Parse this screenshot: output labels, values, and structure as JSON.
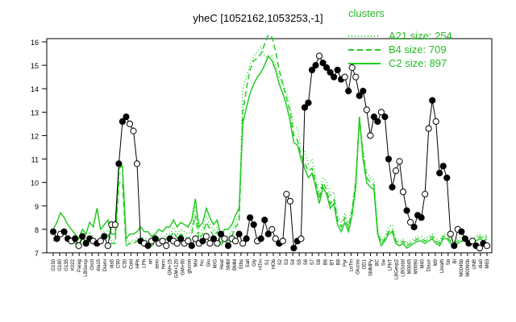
{
  "chart_data": {
    "type": "line",
    "title": "yheC [1052162,1053253,-1]",
    "xlabel": "",
    "ylabel": "",
    "ylim": [
      7,
      16
    ],
    "yticks": [
      7,
      8,
      9,
      10,
      11,
      12,
      13,
      14,
      15,
      16
    ],
    "grid": false,
    "legend": {
      "placement": "top-right",
      "title": "clusters",
      "entries": [
        {
          "label": "A21 size: 254",
          "style": "dotted"
        },
        {
          "label": "B4 size: 709",
          "style": "dashed"
        },
        {
          "label": "C2 size: 897",
          "style": "solid"
        }
      ]
    },
    "colors": {
      "lines": "#22cc22",
      "points_fill": "#000000",
      "points_open": "#ffffff",
      "legend": "#22bb22"
    },
    "x_tick_labels": [
      "G150",
      "G180",
      "G135",
      "K022",
      "Parag",
      "LBGexp",
      "Oxctl",
      "dia15",
      "Diami",
      "dia5",
      "C90",
      "C30",
      "Cold",
      "HPh",
      "LPh",
      "nit",
      "aero",
      "ferm",
      "GM+15",
      "GM+120",
      "GM+90",
      "glucon",
      "Mal",
      "Frc",
      "Glu",
      "M/G",
      "Heat",
      "SMM",
      "BMM",
      "Eths",
      "Salt",
      "Gly",
      "HTm",
      "S1",
      "HOb",
      "S2",
      "S3",
      "S4",
      "S5",
      "S6",
      "S7",
      "S8",
      "B6",
      "BT",
      "B8",
      "Pyr",
      "LoTm",
      "Glucos",
      "OD1",
      "SMMPy",
      "BC",
      "Sw",
      "LPhT",
      "LBGexp2",
      "LBGstat",
      "M0045",
      "M0090",
      "M40",
      "Diaux",
      "M9",
      "Lbrath",
      "Sb",
      "BI",
      "M0045b",
      "M0090b",
      "UNB",
      "dia0",
      "M63"
    ],
    "series": [
      {
        "name": "A21 size: 254",
        "y": [
          7.6,
          7.7,
          8.0,
          7.9,
          7.8,
          7.6,
          7.5,
          7.3,
          7.7,
          7.5,
          7.9,
          7.7,
          7.4,
          7.7,
          7.9,
          8.0,
          7.5,
          7.5,
          10.4,
          10.3,
          7.4,
          7.5,
          7.5,
          7.6,
          7.7,
          7.6,
          7.6,
          7.4,
          7.5,
          7.7,
          7.6,
          7.8,
          7.8,
          8.1,
          7.8,
          8.0,
          7.9,
          7.8,
          8.0,
          9.0,
          7.8,
          8.0,
          8.6,
          8.2,
          7.9,
          8.1,
          7.4,
          7.7,
          7.7,
          7.9,
          8.3,
          8.6,
          14.0,
          14.5,
          15.0,
          15.4,
          15.6,
          15.8,
          15.4,
          15.3,
          15.4,
          15.0,
          14.5,
          14.2,
          13.8,
          13.3,
          12.4,
          12.3,
          11.5,
          11.3,
          10.8,
          11.0,
          10.2,
          9.5,
          10.2,
          10.0,
          9.4,
          9.6,
          8.6,
          8.3,
          8.7,
          8.2,
          9.0,
          10.2,
          12.5,
          11.4,
          10.4,
          10.2,
          10.1,
          8.0,
          7.5,
          7.7,
          8.1,
          8.2,
          7.6,
          7.5,
          7.6,
          7.4,
          7.5,
          7.6,
          7.7,
          7.7,
          7.6,
          7.7,
          7.8,
          7.6,
          7.5,
          7.8,
          7.8,
          7.6,
          7.5,
          7.6,
          7.7,
          7.7,
          7.7,
          7.6,
          7.7,
          7.8,
          7.7,
          7.8
        ]
      },
      {
        "name": "B4 size: 709",
        "y": [
          7.5,
          7.6,
          7.8,
          7.8,
          7.7,
          7.6,
          7.4,
          7.3,
          7.6,
          7.4,
          7.7,
          7.6,
          7.4,
          7.5,
          7.7,
          7.8,
          7.4,
          7.4,
          10.0,
          10.0,
          7.3,
          7.4,
          7.4,
          7.5,
          7.5,
          7.5,
          7.5,
          7.3,
          7.4,
          7.6,
          7.5,
          7.6,
          7.6,
          7.9,
          7.6,
          7.8,
          7.7,
          7.6,
          7.8,
          8.6,
          7.6,
          7.8,
          8.3,
          8.0,
          7.7,
          7.9,
          7.3,
          7.6,
          7.5,
          7.7,
          8.1,
          8.3,
          13.0,
          14.0,
          14.8,
          15.2,
          15.3,
          15.5,
          15.9,
          16.3,
          16.2,
          15.6,
          14.8,
          14.2,
          13.6,
          13.0,
          12.0,
          11.8,
          11.2,
          10.8,
          10.5,
          10.6,
          10.0,
          9.3,
          10.0,
          9.7,
          9.1,
          9.3,
          8.4,
          8.1,
          8.5,
          8.1,
          8.8,
          10.0,
          12.8,
          11.2,
          10.2,
          10.0,
          9.9,
          7.9,
          7.4,
          7.6,
          7.9,
          8.0,
          7.5,
          7.4,
          7.5,
          7.3,
          7.4,
          7.5,
          7.6,
          7.6,
          7.5,
          7.6,
          7.7,
          7.5,
          7.4,
          7.7,
          7.7,
          7.5,
          7.4,
          7.5,
          7.6,
          7.6,
          7.6,
          7.5,
          7.6,
          7.7,
          7.6,
          7.7
        ]
      },
      {
        "name": "C2 size: 897",
        "y": [
          8.0,
          8.3,
          8.7,
          8.5,
          8.2,
          8.0,
          7.8,
          7.6,
          8.0,
          7.8,
          8.3,
          8.1,
          8.9,
          8.0,
          8.2,
          8.4,
          7.8,
          7.8,
          10.6,
          10.7,
          7.6,
          7.8,
          7.8,
          7.9,
          8.1,
          7.9,
          7.9,
          7.7,
          7.8,
          8.0,
          7.9,
          8.1,
          8.1,
          8.4,
          8.1,
          8.3,
          8.2,
          8.1,
          8.4,
          9.3,
          8.1,
          8.3,
          8.9,
          8.5,
          8.2,
          8.4,
          7.7,
          8.0,
          8.0,
          8.2,
          8.6,
          8.9,
          12.5,
          13.2,
          13.8,
          14.2,
          14.5,
          14.7,
          15.0,
          15.4,
          15.2,
          14.8,
          14.2,
          13.8,
          13.3,
          12.6,
          11.7,
          11.6,
          11.0,
          10.6,
          10.2,
          10.4,
          9.8,
          9.1,
          9.8,
          9.5,
          8.9,
          9.1,
          8.2,
          7.9,
          8.3,
          7.9,
          8.6,
          9.8,
          12.8,
          11.0,
          10.0,
          9.8,
          9.7,
          7.8,
          7.3,
          7.5,
          7.8,
          7.9,
          7.4,
          7.3,
          7.4,
          7.2,
          7.3,
          7.4,
          7.5,
          7.5,
          7.4,
          7.5,
          7.6,
          7.4,
          7.3,
          7.6,
          7.6,
          7.4,
          7.3,
          7.4,
          7.5,
          7.5,
          7.5,
          7.4,
          7.5,
          7.6,
          7.5,
          7.6
        ]
      }
    ],
    "points": [
      {
        "x": 0,
        "y": 7.9,
        "filled": true
      },
      {
        "x": 1,
        "y": 7.6,
        "filled": true
      },
      {
        "x": 2,
        "y": 7.8,
        "filled": false
      },
      {
        "x": 3,
        "y": 7.9,
        "filled": true
      },
      {
        "x": 4,
        "y": 7.6,
        "filled": true
      },
      {
        "x": 5,
        "y": 7.5,
        "filled": false
      },
      {
        "x": 6,
        "y": 7.6,
        "filled": true
      },
      {
        "x": 7,
        "y": 7.3,
        "filled": false
      },
      {
        "x": 8,
        "y": 7.7,
        "filled": true
      },
      {
        "x": 9,
        "y": 7.4,
        "filled": true
      },
      {
        "x": 10,
        "y": 7.6,
        "filled": true
      },
      {
        "x": 11,
        "y": 7.5,
        "filled": false
      },
      {
        "x": 12,
        "y": 7.4,
        "filled": true
      },
      {
        "x": 13,
        "y": 7.5,
        "filled": false
      },
      {
        "x": 14,
        "y": 7.7,
        "filled": true
      },
      {
        "x": 15,
        "y": 7.3,
        "filled": false
      },
      {
        "x": 16,
        "y": 8.2,
        "filled": false
      },
      {
        "x": 17,
        "y": 8.2,
        "filled": false
      },
      {
        "x": 18,
        "y": 10.8,
        "filled": true
      },
      {
        "x": 19,
        "y": 12.6,
        "filled": true
      },
      {
        "x": 20,
        "y": 12.8,
        "filled": true
      },
      {
        "x": 21,
        "y": 12.5,
        "filled": false
      },
      {
        "x": 22,
        "y": 12.2,
        "filled": false
      },
      {
        "x": 23,
        "y": 10.8,
        "filled": false
      },
      {
        "x": 24,
        "y": 7.5,
        "filled": true
      },
      {
        "x": 25,
        "y": 7.4,
        "filled": false
      },
      {
        "x": 26,
        "y": 7.3,
        "filled": true
      },
      {
        "x": 27,
        "y": 7.5,
        "filled": false
      },
      {
        "x": 28,
        "y": 7.6,
        "filled": true
      },
      {
        "x": 29,
        "y": 7.4,
        "filled": false
      },
      {
        "x": 30,
        "y": 7.5,
        "filled": false
      },
      {
        "x": 31,
        "y": 7.3,
        "filled": false
      },
      {
        "x": 32,
        "y": 7.6,
        "filled": true
      },
      {
        "x": 33,
        "y": 7.5,
        "filled": false
      },
      {
        "x": 34,
        "y": 7.4,
        "filled": false
      },
      {
        "x": 35,
        "y": 7.6,
        "filled": true
      },
      {
        "x": 36,
        "y": 7.4,
        "filled": false
      },
      {
        "x": 37,
        "y": 7.5,
        "filled": false
      },
      {
        "x": 38,
        "y": 7.3,
        "filled": true
      },
      {
        "x": 39,
        "y": 7.6,
        "filled": false
      },
      {
        "x": 40,
        "y": 7.4,
        "filled": false
      },
      {
        "x": 41,
        "y": 7.5,
        "filled": true
      },
      {
        "x": 42,
        "y": 7.7,
        "filled": false
      },
      {
        "x": 43,
        "y": 7.4,
        "filled": false
      },
      {
        "x": 44,
        "y": 7.6,
        "filled": true
      },
      {
        "x": 45,
        "y": 7.4,
        "filled": false
      },
      {
        "x": 46,
        "y": 7.8,
        "filled": true
      },
      {
        "x": 47,
        "y": 7.6,
        "filled": false
      },
      {
        "x": 48,
        "y": 7.3,
        "filled": true
      },
      {
        "x": 49,
        "y": 7.6,
        "filled": false
      },
      {
        "x": 50,
        "y": 7.5,
        "filled": false
      },
      {
        "x": 51,
        "y": 7.8,
        "filled": true
      },
      {
        "x": 52,
        "y": 7.4,
        "filled": false
      },
      {
        "x": 53,
        "y": 7.6,
        "filled": true
      },
      {
        "x": 54,
        "y": 8.5,
        "filled": true
      },
      {
        "x": 55,
        "y": 8.2,
        "filled": true
      },
      {
        "x": 56,
        "y": 7.5,
        "filled": false
      },
      {
        "x": 57,
        "y": 7.6,
        "filled": true
      },
      {
        "x": 58,
        "y": 8.4,
        "filled": true
      },
      {
        "x": 59,
        "y": 7.8,
        "filled": true
      },
      {
        "x": 60,
        "y": 8.0,
        "filled": false
      },
      {
        "x": 61,
        "y": 7.6,
        "filled": false
      },
      {
        "x": 62,
        "y": 7.4,
        "filled": true
      },
      {
        "x": 63,
        "y": 7.5,
        "filled": false
      },
      {
        "x": 64,
        "y": 9.5,
        "filled": false
      },
      {
        "x": 65,
        "y": 9.2,
        "filled": false
      },
      {
        "x": 66,
        "y": 7.2,
        "filled": true
      },
      {
        "x": 67,
        "y": 7.5,
        "filled": true
      },
      {
        "x": 68,
        "y": 7.6,
        "filled": false
      },
      {
        "x": 69,
        "y": 13.2,
        "filled": true
      },
      {
        "x": 70,
        "y": 13.4,
        "filled": true
      },
      {
        "x": 71,
        "y": 14.8,
        "filled": true
      },
      {
        "x": 72,
        "y": 15.0,
        "filled": true
      },
      {
        "x": 73,
        "y": 15.4,
        "filled": false
      },
      {
        "x": 74,
        "y": 15.1,
        "filled": true
      },
      {
        "x": 75,
        "y": 14.9,
        "filled": true
      },
      {
        "x": 76,
        "y": 14.7,
        "filled": true
      },
      {
        "x": 77,
        "y": 14.5,
        "filled": true
      },
      {
        "x": 78,
        "y": 14.8,
        "filled": true
      },
      {
        "x": 79,
        "y": 14.4,
        "filled": true
      },
      {
        "x": 80,
        "y": 14.5,
        "filled": false
      },
      {
        "x": 81,
        "y": 13.9,
        "filled": true
      },
      {
        "x": 82,
        "y": 14.9,
        "filled": false
      },
      {
        "x": 83,
        "y": 14.5,
        "filled": false
      },
      {
        "x": 84,
        "y": 13.7,
        "filled": true
      },
      {
        "x": 85,
        "y": 13.9,
        "filled": true
      },
      {
        "x": 86,
        "y": 13.1,
        "filled": false
      },
      {
        "x": 87,
        "y": 12.0,
        "filled": false
      },
      {
        "x": 88,
        "y": 12.8,
        "filled": true
      },
      {
        "x": 89,
        "y": 12.6,
        "filled": true
      },
      {
        "x": 90,
        "y": 13.0,
        "filled": false
      },
      {
        "x": 91,
        "y": 12.8,
        "filled": true
      },
      {
        "x": 92,
        "y": 11.0,
        "filled": true
      },
      {
        "x": 93,
        "y": 9.8,
        "filled": true
      },
      {
        "x": 94,
        "y": 10.5,
        "filled": false
      },
      {
        "x": 95,
        "y": 10.9,
        "filled": false
      },
      {
        "x": 96,
        "y": 9.6,
        "filled": false
      },
      {
        "x": 97,
        "y": 8.8,
        "filled": true
      },
      {
        "x": 98,
        "y": 8.3,
        "filled": false
      },
      {
        "x": 99,
        "y": 8.1,
        "filled": true
      },
      {
        "x": 100,
        "y": 8.6,
        "filled": true
      },
      {
        "x": 101,
        "y": 8.5,
        "filled": true
      },
      {
        "x": 102,
        "y": 9.5,
        "filled": false
      },
      {
        "x": 103,
        "y": 12.3,
        "filled": false
      },
      {
        "x": 104,
        "y": 13.5,
        "filled": true
      },
      {
        "x": 105,
        "y": 12.6,
        "filled": false
      },
      {
        "x": 106,
        "y": 10.4,
        "filled": true
      },
      {
        "x": 107,
        "y": 10.7,
        "filled": true
      },
      {
        "x": 108,
        "y": 10.2,
        "filled": true
      },
      {
        "x": 109,
        "y": 7.8,
        "filled": false
      },
      {
        "x": 110,
        "y": 7.3,
        "filled": true
      },
      {
        "x": 111,
        "y": 8.0,
        "filled": false
      },
      {
        "x": 112,
        "y": 7.9,
        "filled": true
      },
      {
        "x": 113,
        "y": 7.6,
        "filled": true
      },
      {
        "x": 114,
        "y": 7.4,
        "filled": true
      },
      {
        "x": 115,
        "y": 7.5,
        "filled": false
      },
      {
        "x": 116,
        "y": 7.3,
        "filled": true
      },
      {
        "x": 117,
        "y": 7.2,
        "filled": false
      },
      {
        "x": 118,
        "y": 7.4,
        "filled": true
      },
      {
        "x": 119,
        "y": 7.3,
        "filled": false
      }
    ]
  }
}
